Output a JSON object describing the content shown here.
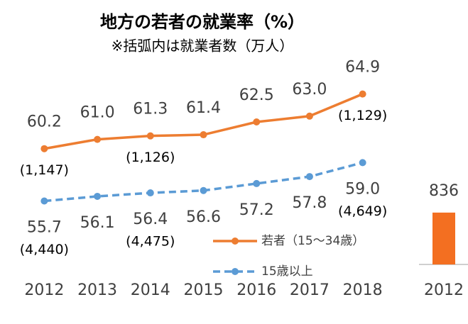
{
  "chart_data": [
    {
      "type": "line",
      "title": "地方の若者の就業率（%）",
      "subtitle": "※括弧内は就業者数（万人）",
      "categories": [
        "2012",
        "2013",
        "2014",
        "2015",
        "2016",
        "2017",
        "2018"
      ],
      "ylim": [
        50,
        67.5
      ],
      "series": [
        {
          "name": "若者（15～34歳）",
          "color": "#ed7d31",
          "dash": false,
          "values": [
            60.2,
            61.0,
            61.3,
            61.4,
            62.5,
            63.0,
            64.9
          ],
          "value_labels": [
            "60.2",
            "61.0",
            "61.3",
            "61.4",
            "62.5",
            "63.0",
            "64.9"
          ],
          "employed_labels": [
            "(1,147)",
            null,
            "(1,126)",
            null,
            null,
            null,
            "(1,129)"
          ]
        },
        {
          "name": "15歳以上",
          "color": "#5b9bd5",
          "dash": true,
          "values": [
            55.7,
            56.1,
            56.4,
            56.6,
            57.2,
            57.8,
            59.0
          ],
          "value_labels": [
            "55.7",
            "56.1",
            "56.4",
            "56.6",
            "57.2",
            "57.8",
            "59.0"
          ],
          "employed_labels": [
            "(4,440)",
            null,
            "(4,475)",
            null,
            null,
            null,
            "(4,649)"
          ]
        }
      ]
    },
    {
      "type": "bar",
      "categories": [
        "2012"
      ],
      "values": [
        836
      ],
      "color": "#f36f21",
      "ylim": [
        0,
        2000
      ]
    }
  ]
}
